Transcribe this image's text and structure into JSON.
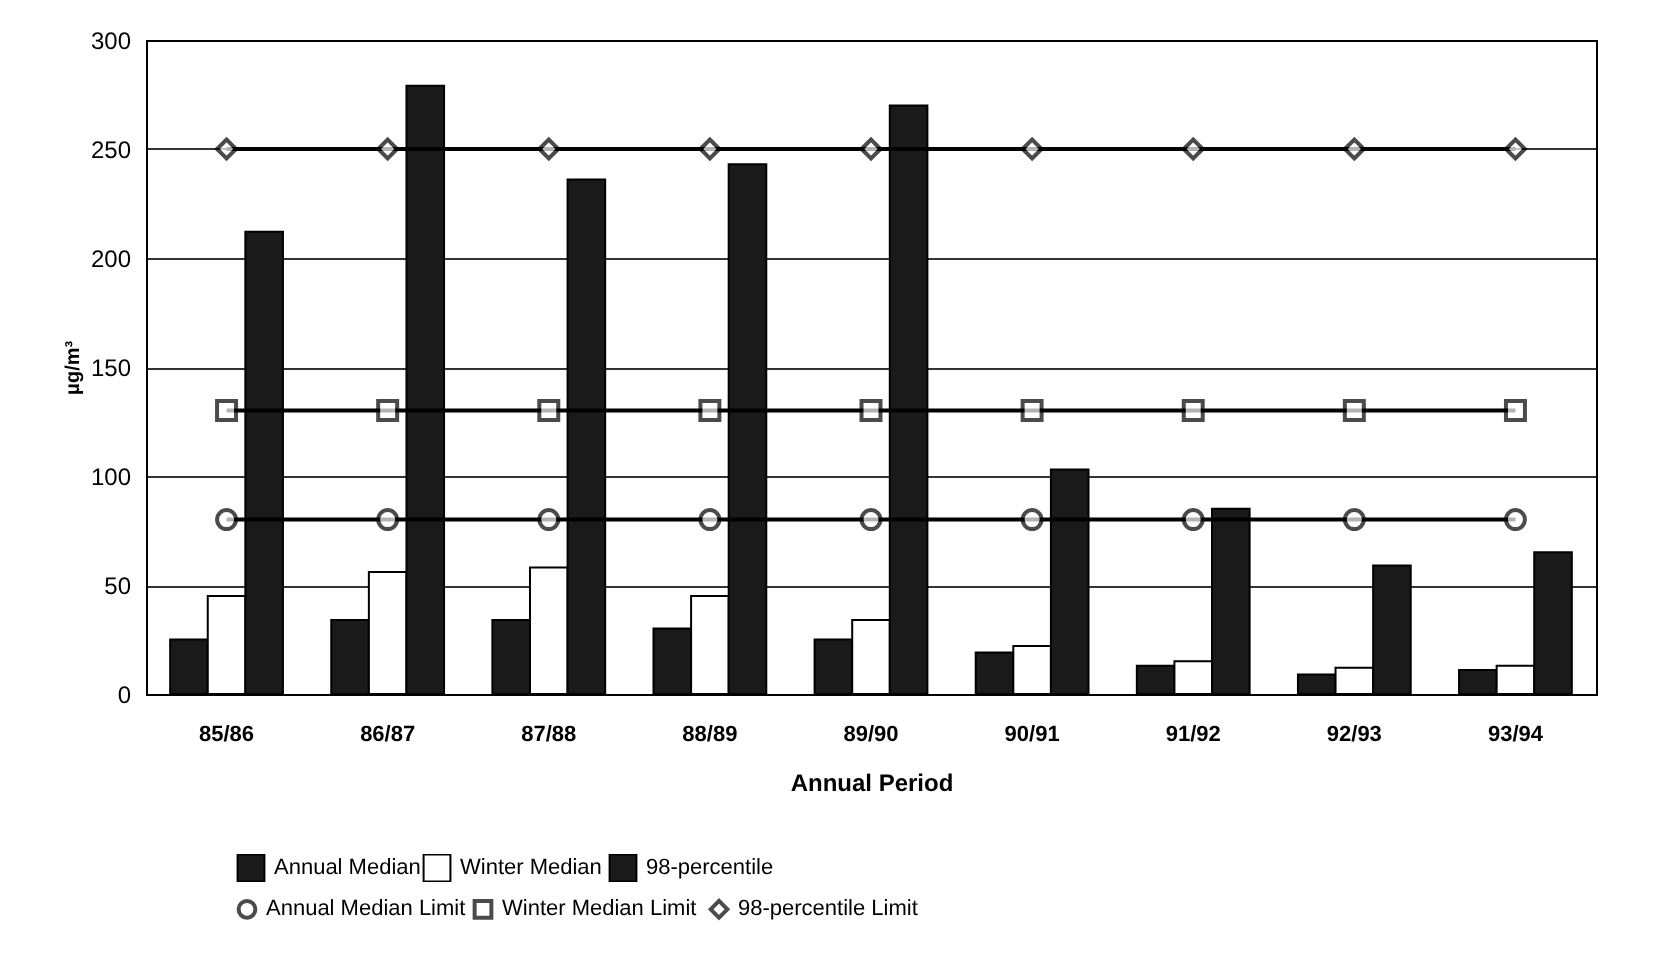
{
  "chart_data": {
    "type": "bar",
    "xlabel": "Annual Period",
    "ylabel": "μg/m³",
    "categories": [
      "85/86",
      "86/87",
      "87/88",
      "88/89",
      "89/90",
      "90/91",
      "91/92",
      "92/93",
      "93/94"
    ],
    "series": [
      {
        "name": "Annual Median",
        "color": "#1a1a1a",
        "values": [
          25,
          34,
          34,
          30,
          25,
          19,
          13,
          9,
          11
        ]
      },
      {
        "name": "Winter Median",
        "color": "#ffffff",
        "values": [
          45,
          56,
          58,
          45,
          34,
          22,
          15,
          12,
          13
        ]
      },
      {
        "name": "98-percentile",
        "color": "#1a1a1a",
        "values": [
          212,
          279,
          236,
          243,
          270,
          103,
          85,
          59,
          65
        ]
      },
      {
        "name": "Annual Median Limit",
        "type": "line",
        "color": "#000000",
        "marker": "circle",
        "values": [
          80,
          80,
          80,
          80,
          80,
          80,
          80,
          80,
          80
        ]
      },
      {
        "name": "Winter Median Limit",
        "type": "line",
        "color": "#000000",
        "marker": "square",
        "values": [
          130,
          130,
          130,
          130,
          130,
          130,
          130,
          130,
          130
        ]
      },
      {
        "name": "98-percentile Limit",
        "type": "line",
        "color": "#000000",
        "marker": "diamond",
        "values": [
          250,
          250,
          250,
          250,
          250,
          250,
          250,
          250,
          250
        ]
      }
    ],
    "ylim": [
      0,
      300
    ],
    "yticks": [
      0,
      50,
      100,
      150,
      200,
      250,
      300
    ],
    "grid": "y",
    "legend": "bottom"
  }
}
